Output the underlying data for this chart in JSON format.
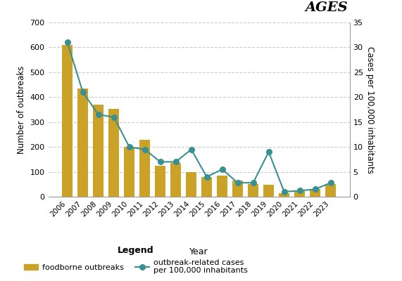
{
  "years": [
    2006,
    2007,
    2008,
    2009,
    2010,
    2011,
    2012,
    2013,
    2014,
    2015,
    2016,
    2017,
    2018,
    2019,
    2020,
    2021,
    2022,
    2023
  ],
  "outbreaks": [
    610,
    435,
    370,
    352,
    200,
    230,
    125,
    135,
    98,
    80,
    85,
    65,
    52,
    47,
    15,
    22,
    30,
    50
  ],
  "cases_per_100k": [
    31.0,
    21.0,
    16.5,
    16.0,
    10.0,
    9.5,
    7.0,
    7.0,
    9.5,
    4.0,
    5.5,
    2.8,
    2.8,
    9.0,
    1.0,
    1.2,
    1.5,
    2.8
  ],
  "bar_color": "#C9A227",
  "line_color": "#3A9090",
  "marker_color": "#3A9090",
  "background_color": "#ffffff",
  "ylabel_left": "Number of outbreaks",
  "ylabel_right": "Cases per 100,000 inhabitants",
  "xlabel": "Year",
  "ylim_left": [
    0,
    700
  ],
  "ylim_right": [
    0,
    35
  ],
  "yticks_left": [
    0,
    100,
    200,
    300,
    400,
    500,
    600,
    700
  ],
  "yticks_right": [
    0,
    5,
    10,
    15,
    20,
    25,
    30,
    35
  ],
  "legend_title": "Legend",
  "legend_bar_label": "foodborne outbreaks",
  "legend_line_label": "outbreak-related cases\nper 100,000 inhabitants"
}
